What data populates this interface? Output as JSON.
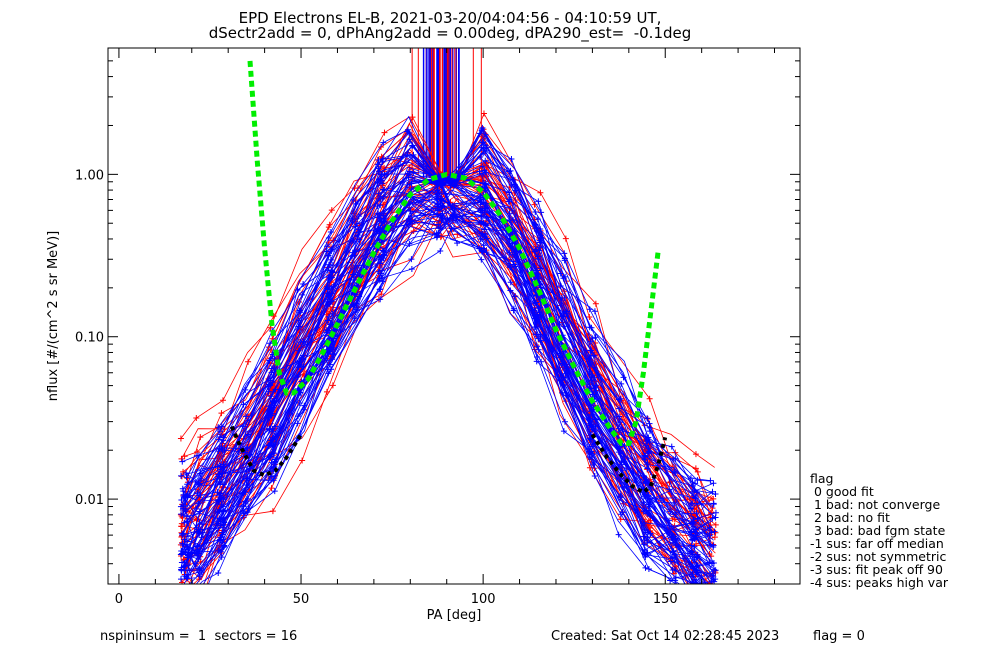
{
  "title_line1": "EPD Electrons EL-B, 2021-03-20/04:04:56 - 04:10:59 UT,",
  "title_line2": "dSectr2add = 0, dPhAng2add = 0.00deg, dPA290_est=  -0.1deg",
  "footer": {
    "nspin": "nspininsum =  1  sectors = 16",
    "created": "Created: Sat Oct 14 02:28:45 2023",
    "flag": "flag = 0"
  },
  "flag_legend": [
    "flag",
    " 0 good fit",
    " 1 bad: not converge",
    " 2 bad: no fit",
    " 3 bad: bad fgm state",
    "-1 sus: far off median",
    "-2 sus: not symmetric",
    "-3 sus: fit peak off 90",
    "-4 sus: peaks high var"
  ],
  "colors": {
    "series_red": "#ff0000",
    "series_blue": "#0000ff",
    "fit_green": "#00ee00",
    "fit_black": "#000000"
  },
  "chart_data": {
    "type": "line",
    "xlabel": "PA [deg]",
    "ylabel": "nflux [#/(cm^2 s sr MeV)]",
    "xlim": [
      -3,
      187
    ],
    "ylim": [
      0.003,
      6.0
    ],
    "yscale": "log",
    "xticks": [
      0,
      50,
      100,
      150
    ],
    "xtick_labels": [
      "0",
      "50",
      "100",
      "150"
    ],
    "yticks": [
      0.01,
      0.1,
      1.0
    ],
    "ytick_labels": [
      "0.01",
      "0.10",
      "1.00"
    ],
    "grid": false,
    "series": [
      {
        "style": "red-plus-lines",
        "x": [
          18,
          22,
          28,
          35,
          42,
          50,
          58,
          65,
          72,
          80,
          88,
          92,
          100,
          108,
          115,
          122,
          130,
          138,
          145,
          152,
          158,
          163
        ],
        "y": [
          0.006,
          0.008,
          0.012,
          0.02,
          0.035,
          0.08,
          0.16,
          0.3,
          0.55,
          0.9,
          1.0,
          1.0,
          0.8,
          0.45,
          0.22,
          0.1,
          0.045,
          0.02,
          0.012,
          0.008,
          0.006,
          0.005
        ]
      },
      {
        "style": "blue-plus-lines",
        "x": [
          18,
          22,
          28,
          35,
          42,
          50,
          58,
          65,
          72,
          80,
          88,
          92,
          100,
          108,
          115,
          122,
          130,
          138,
          145,
          152,
          158,
          163
        ],
        "y": [
          0.005,
          0.007,
          0.01,
          0.018,
          0.03,
          0.07,
          0.15,
          0.28,
          0.5,
          0.85,
          0.95,
          0.95,
          0.75,
          0.42,
          0.2,
          0.09,
          0.04,
          0.018,
          0.01,
          0.007,
          0.005,
          0.004
        ]
      },
      {
        "style": "green-dashed-fit",
        "x": [
          36,
          38,
          40,
          42,
          44,
          46,
          48,
          52,
          56,
          60,
          65,
          70,
          75,
          80,
          85,
          90,
          95,
          100,
          105,
          110,
          115,
          120,
          125,
          130,
          135,
          138,
          140,
          142,
          144,
          146,
          148
        ],
        "y": [
          5.0,
          1.2,
          0.35,
          0.12,
          0.06,
          0.045,
          0.045,
          0.055,
          0.08,
          0.12,
          0.2,
          0.33,
          0.52,
          0.75,
          0.93,
          1.0,
          0.95,
          0.78,
          0.55,
          0.35,
          0.2,
          0.11,
          0.065,
          0.04,
          0.027,
          0.022,
          0.022,
          0.03,
          0.06,
          0.14,
          0.33
        ]
      },
      {
        "style": "black-dashed-fit-left",
        "x": [
          31,
          33,
          35,
          37,
          40,
          43,
          46,
          50
        ],
        "y": [
          0.028,
          0.022,
          0.018,
          0.015,
          0.014,
          0.015,
          0.018,
          0.025
        ]
      },
      {
        "style": "black-dashed-fit-right",
        "x": [
          130,
          134,
          138,
          141,
          144,
          146,
          148,
          150
        ],
        "y": [
          0.025,
          0.018,
          0.014,
          0.012,
          0.011,
          0.012,
          0.016,
          0.024
        ]
      }
    ]
  }
}
